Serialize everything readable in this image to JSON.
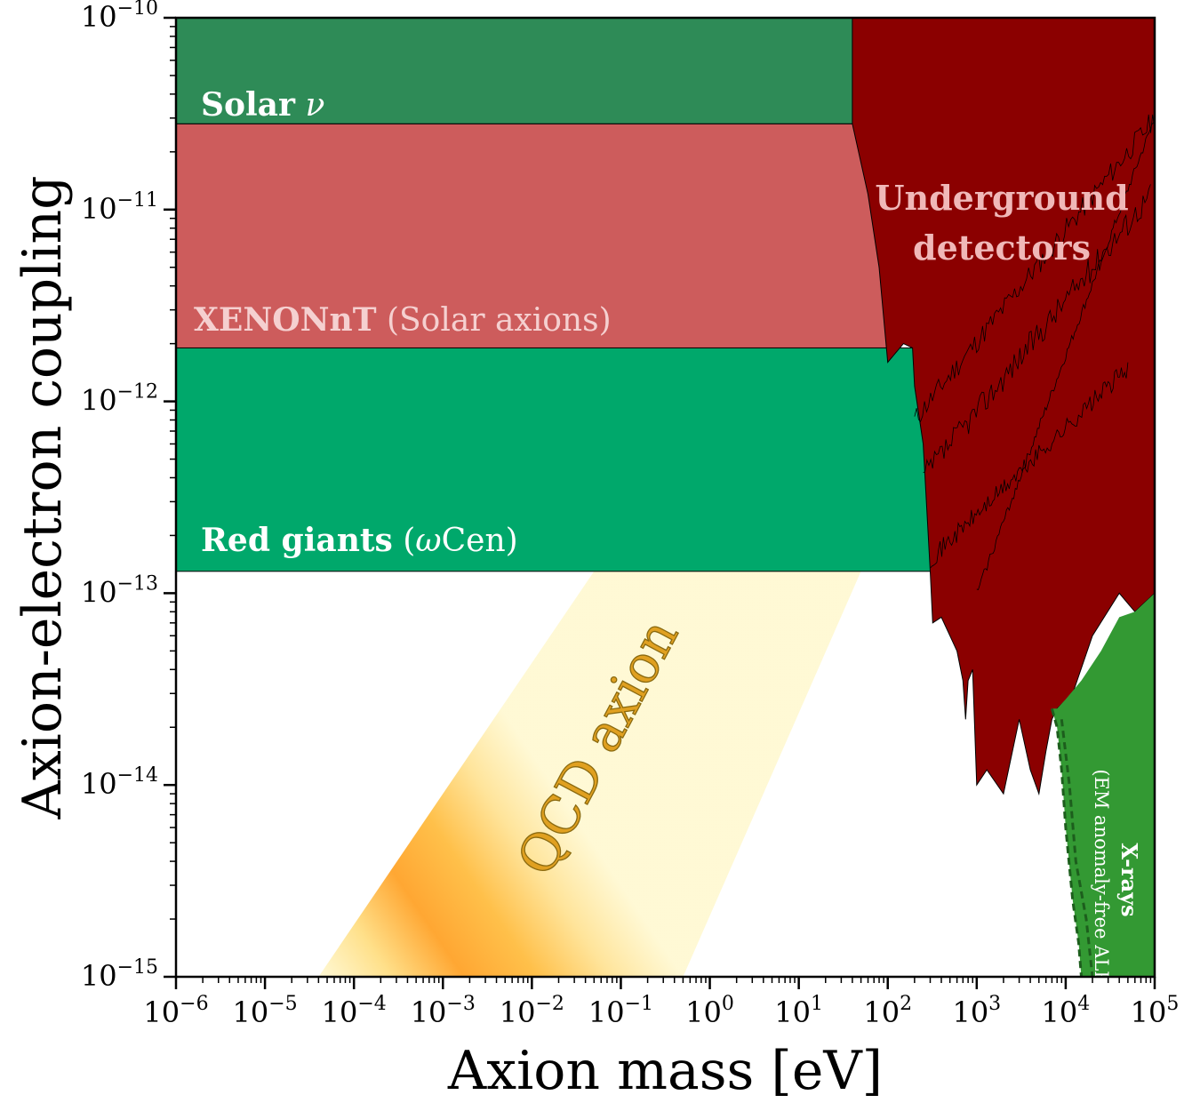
{
  "chart_data": {
    "type": "area",
    "xlabel": "Axion mass [eV]",
    "ylabel": "Axion-electron coupling",
    "x_scale": "log",
    "y_scale": "log",
    "xlim": [
      1e-06,
      100000.0
    ],
    "ylim": [
      1e-15,
      1e-10
    ],
    "x_ticks": [
      {
        "exp": "-6",
        "value": 1e-06
      },
      {
        "exp": "-5",
        "value": 1e-05
      },
      {
        "exp": "-4",
        "value": 0.0001
      },
      {
        "exp": "-3",
        "value": 0.001
      },
      {
        "exp": "-2",
        "value": 0.01
      },
      {
        "exp": "-1",
        "value": 0.1
      },
      {
        "exp": "0",
        "value": 1
      },
      {
        "exp": "1",
        "value": 10
      },
      {
        "exp": "2",
        "value": 100
      },
      {
        "exp": "3",
        "value": 1000
      },
      {
        "exp": "4",
        "value": 10000
      },
      {
        "exp": "5",
        "value": 100000
      }
    ],
    "y_ticks": [
      {
        "exp": "-10",
        "value": 1e-10
      },
      {
        "exp": "-11",
        "value": 1e-11
      },
      {
        "exp": "-12",
        "value": 1e-12
      },
      {
        "exp": "-13",
        "value": 1e-13
      },
      {
        "exp": "-14",
        "value": 1e-14
      },
      {
        "exp": "-15",
        "value": 1e-15
      }
    ],
    "tick_base": "10",
    "grid": false,
    "colors": {
      "solar": "#2e8b57",
      "xenonnt": "#cd5c5c",
      "red_giants": "#00a86b",
      "underground": "#8b0000",
      "xrays": "#339933",
      "qcd_core": "#ffa733",
      "qcd_edge": "#fff8d0"
    },
    "regions": [
      {
        "key": "solar",
        "label_bold": "Solar",
        "label_suffix": "ν",
        "g_lower": 2.8e-11,
        "mass_range": [
          1e-06,
          10000.0
        ],
        "boundary": [
          [
            1e-06,
            2.8e-11
          ],
          [
            1000.0,
            2.8e-11
          ],
          [
            2000,
            3.1e-11
          ],
          [
            5000,
            5e-11
          ],
          [
            8000,
            9e-11
          ],
          [
            9000,
            1e-10
          ]
        ]
      },
      {
        "key": "xenonnt",
        "label_bold": "XENONnT",
        "label_suffix": "(Solar axions)",
        "g_range": [
          1.9e-12,
          2.8e-11
        ],
        "mass_max": 40
      },
      {
        "key": "red_giants",
        "label_bold": "Red giants",
        "label_suffix_italic": "ω",
        "label_suffix": "Cen)",
        "label_prefix_paren": "(",
        "g_range": [
          1.3e-13,
          1.9e-12
        ],
        "mass_max": 200
      },
      {
        "key": "underground",
        "label_line1": "Underground",
        "label_line2": "detectors",
        "lower_boundary": [
          [
            40,
            2.8e-11
          ],
          [
            60,
            1.2e-11
          ],
          [
            80,
            5e-12
          ],
          [
            100,
            1.6e-12
          ],
          [
            150,
            2e-12
          ],
          [
            190,
            1.9e-12
          ],
          [
            200,
            1.2e-12
          ],
          [
            250,
            6e-13
          ],
          [
            300,
            1.3e-13
          ],
          [
            320,
            7e-14
          ],
          [
            400,
            7.5e-14
          ],
          [
            500,
            6e-14
          ],
          [
            600,
            5e-14
          ],
          [
            700,
            3.5e-14
          ],
          [
            750,
            2.2e-14
          ],
          [
            800,
            3.5e-14
          ],
          [
            900,
            4e-14
          ],
          [
            1000,
            1e-14
          ],
          [
            1300,
            1.2e-14
          ],
          [
            2000,
            9e-15
          ],
          [
            3000,
            2.2e-14
          ],
          [
            4000,
            1.2e-14
          ],
          [
            5000,
            9e-15
          ],
          [
            6000,
            1.5e-14
          ],
          [
            7000,
            2.2e-14
          ],
          [
            8000,
            2.5e-14
          ],
          [
            12000,
            3e-14
          ],
          [
            20000,
            6e-14
          ],
          [
            40000,
            1e-13
          ],
          [
            60000,
            8e-14
          ],
          [
            100000,
            1e-13
          ]
        ]
      },
      {
        "key": "xrays",
        "label_bold": "X-rays",
        "label_sub": "(EM anomaly-free ALP)",
        "boundary": [
          [
            7000,
            2.5e-14
          ],
          [
            8000,
            2e-14
          ],
          [
            9000,
            1.2e-14
          ],
          [
            10000,
            6e-15
          ],
          [
            12000,
            2.5e-15
          ],
          [
            14000,
            1.5e-15
          ],
          [
            15000,
            1e-15
          ],
          [
            100000,
            1e-15
          ],
          [
            100000,
            1e-13
          ],
          [
            60000,
            8e-14
          ],
          [
            40000,
            7.5e-14
          ],
          [
            25000,
            5e-14
          ],
          [
            15000,
            3.5e-14
          ],
          [
            10000,
            2.8e-14
          ],
          [
            8000,
            2.5e-14
          ]
        ]
      },
      {
        "key": "qcd",
        "label": "QCD axion",
        "band_center": [
          [
            0.001,
            1e-15
          ],
          [
            3,
            1.3e-13
          ]
        ],
        "band_edges_at_bottom": [
          4e-05,
          0.5
        ],
        "band_edges_at_top": [
          0.05,
          50
        ]
      }
    ]
  }
}
